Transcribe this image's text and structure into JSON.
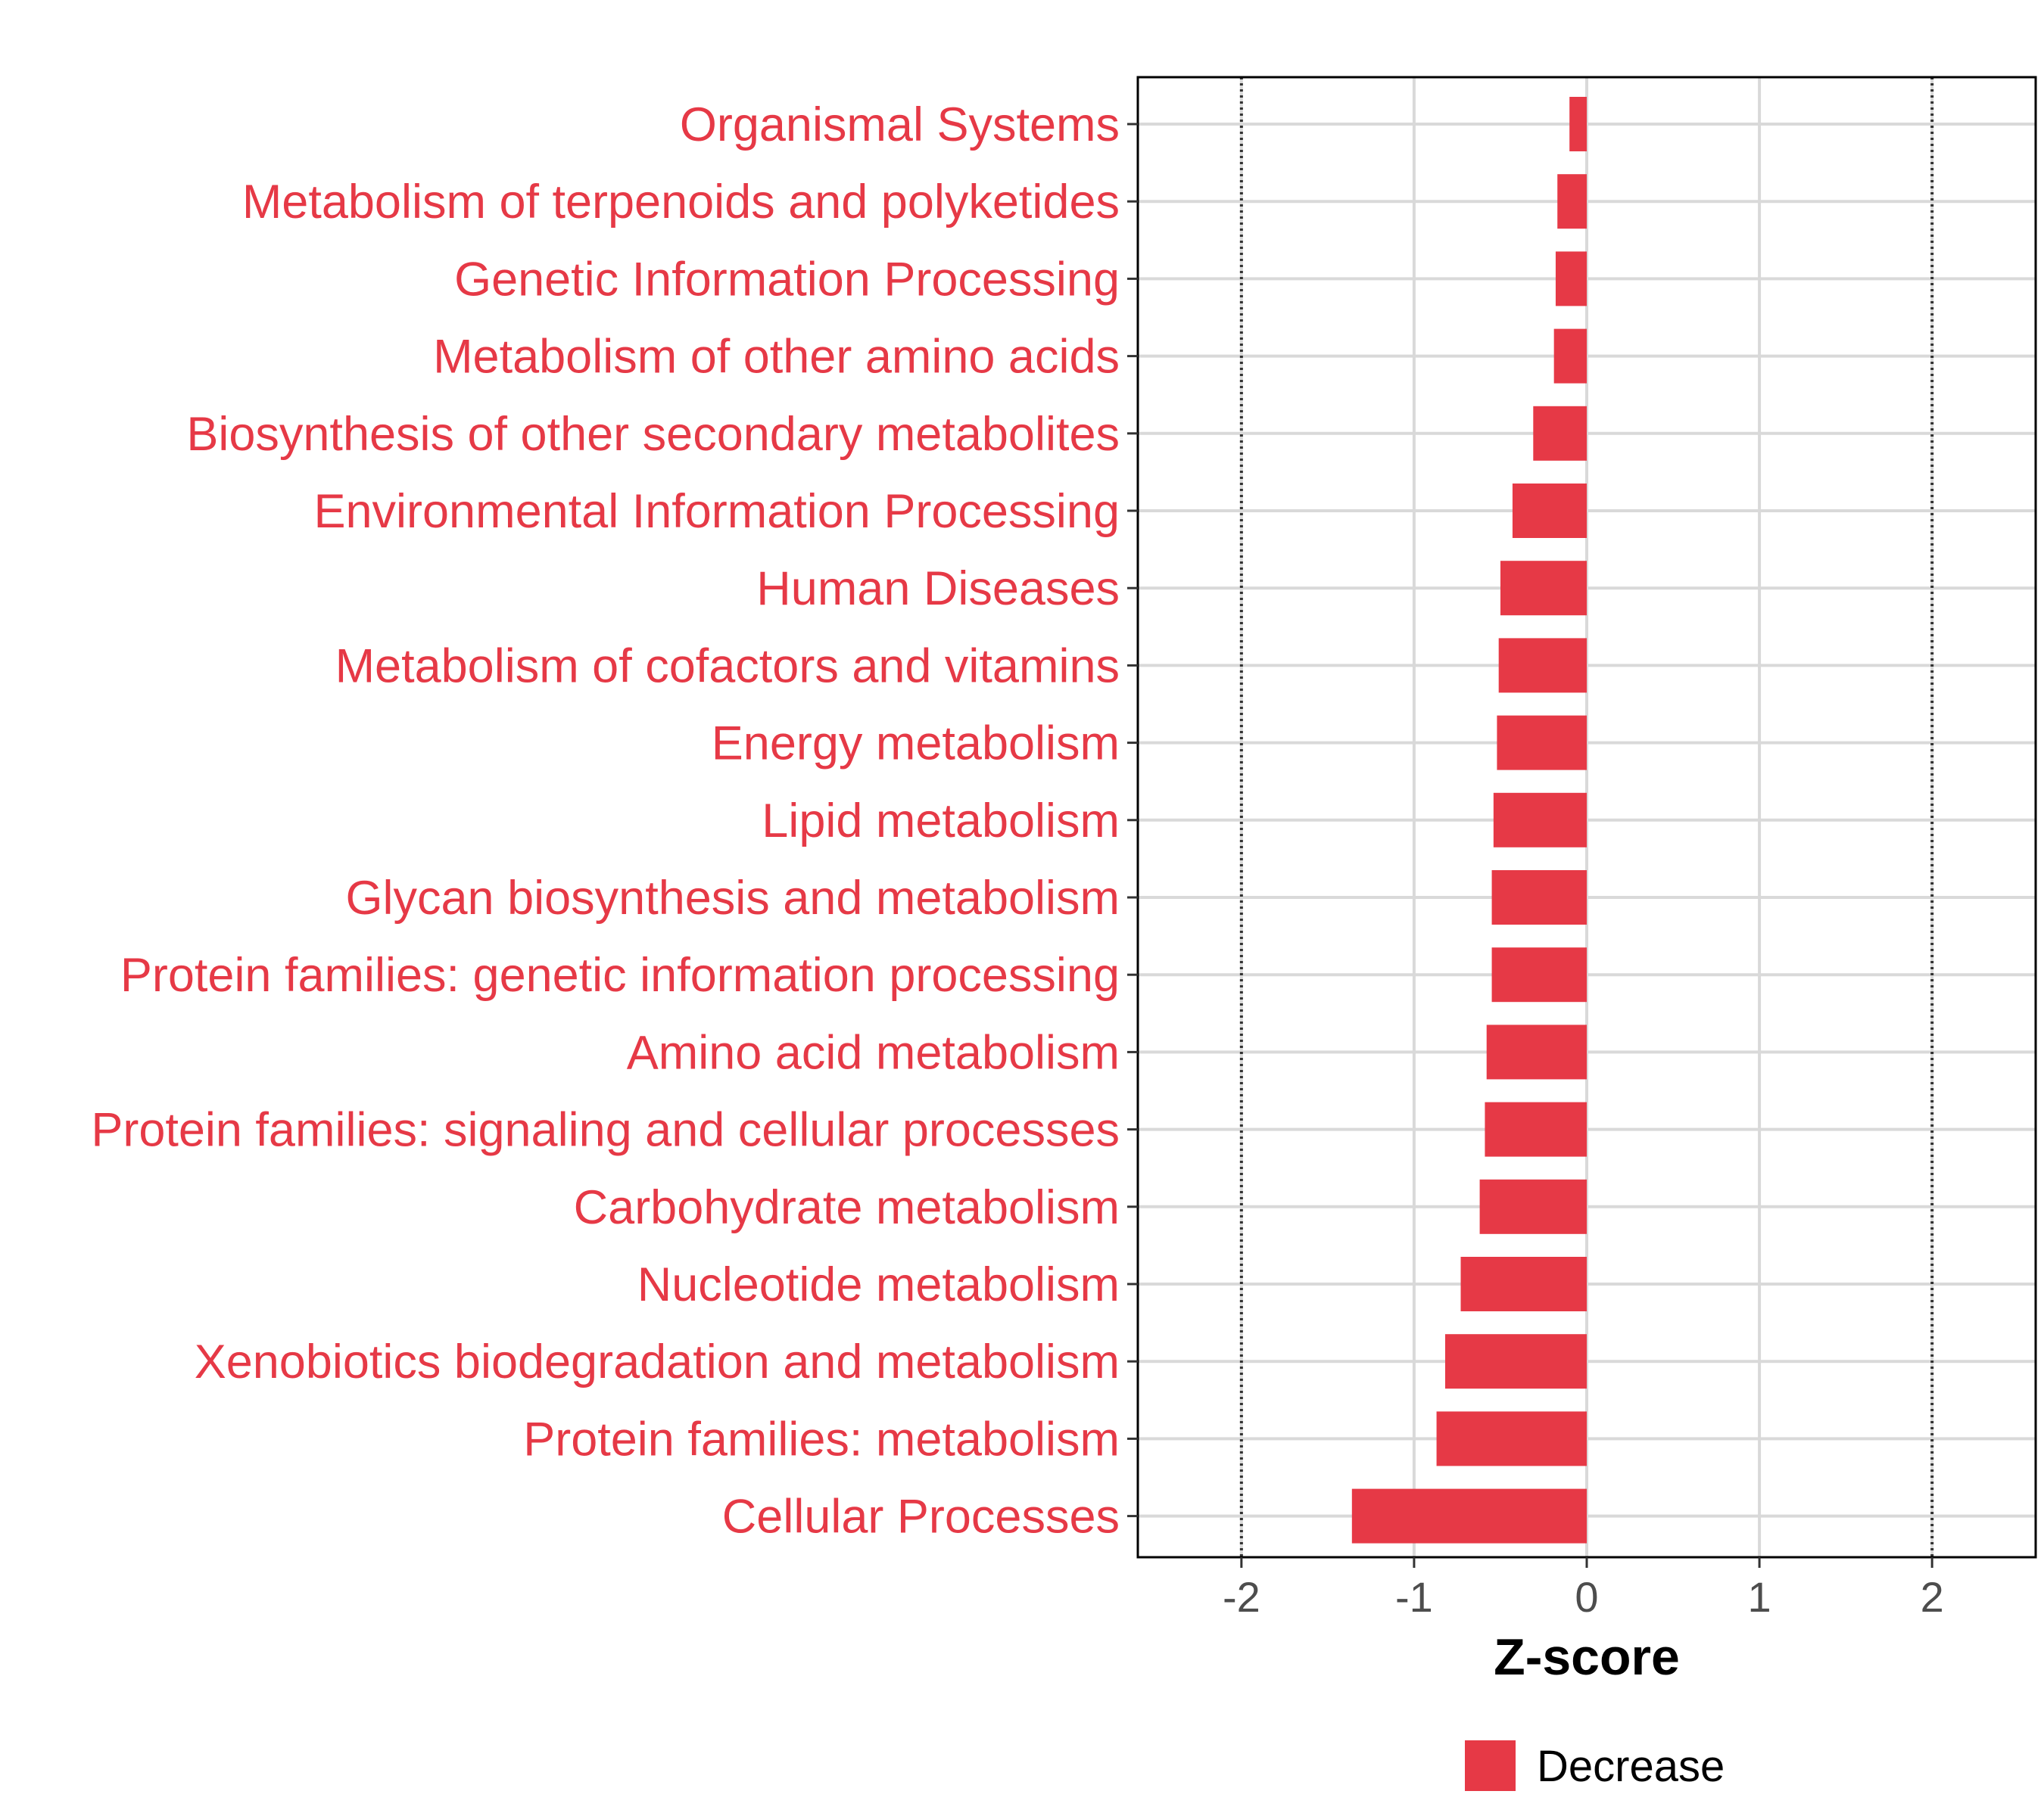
{
  "chart_data": {
    "type": "bar",
    "orientation": "horizontal",
    "categories": [
      "Organismal Systems",
      "Metabolism of terpenoids and polyketides",
      "Genetic Information Processing",
      "Metabolism of other amino acids",
      "Biosynthesis of other secondary metabolites",
      "Environmental Information Processing",
      "Human Diseases",
      "Metabolism of cofactors and vitamins",
      "Energy metabolism",
      "Lipid metabolism",
      "Glycan biosynthesis and metabolism",
      "Protein families: genetic information processing",
      "Amino acid metabolism",
      "Protein families: signaling and cellular processes",
      "Carbohydrate metabolism",
      "Nucleotide metabolism",
      "Xenobiotics biodegradation and metabolism",
      "Protein families: metabolism",
      "Cellular Processes"
    ],
    "values": [
      -0.1,
      -0.17,
      -0.18,
      -0.19,
      -0.31,
      -0.43,
      -0.5,
      -0.51,
      -0.52,
      -0.54,
      -0.55,
      -0.55,
      -0.58,
      -0.59,
      -0.62,
      -0.73,
      -0.82,
      -0.87,
      -1.36
    ],
    "series": [
      {
        "name": "Decrease",
        "color": "#e63946"
      }
    ],
    "xlabel": "Z-score",
    "ylabel": "",
    "xlim": [
      -2.6,
      2.6
    ],
    "xticks": [
      -2,
      -1,
      0,
      1,
      2
    ],
    "xtick_labels": [
      "-2",
      "-1",
      "0",
      "1",
      "2"
    ],
    "reference_lines": [
      -2,
      2
    ],
    "grid": true,
    "legend": {
      "position": "bottom",
      "entries": [
        "Decrease"
      ]
    },
    "colors": {
      "bar": "#e63946",
      "category_label": "#e63946",
      "grid": "#d9d9d9",
      "reference_line": "#333333"
    }
  }
}
